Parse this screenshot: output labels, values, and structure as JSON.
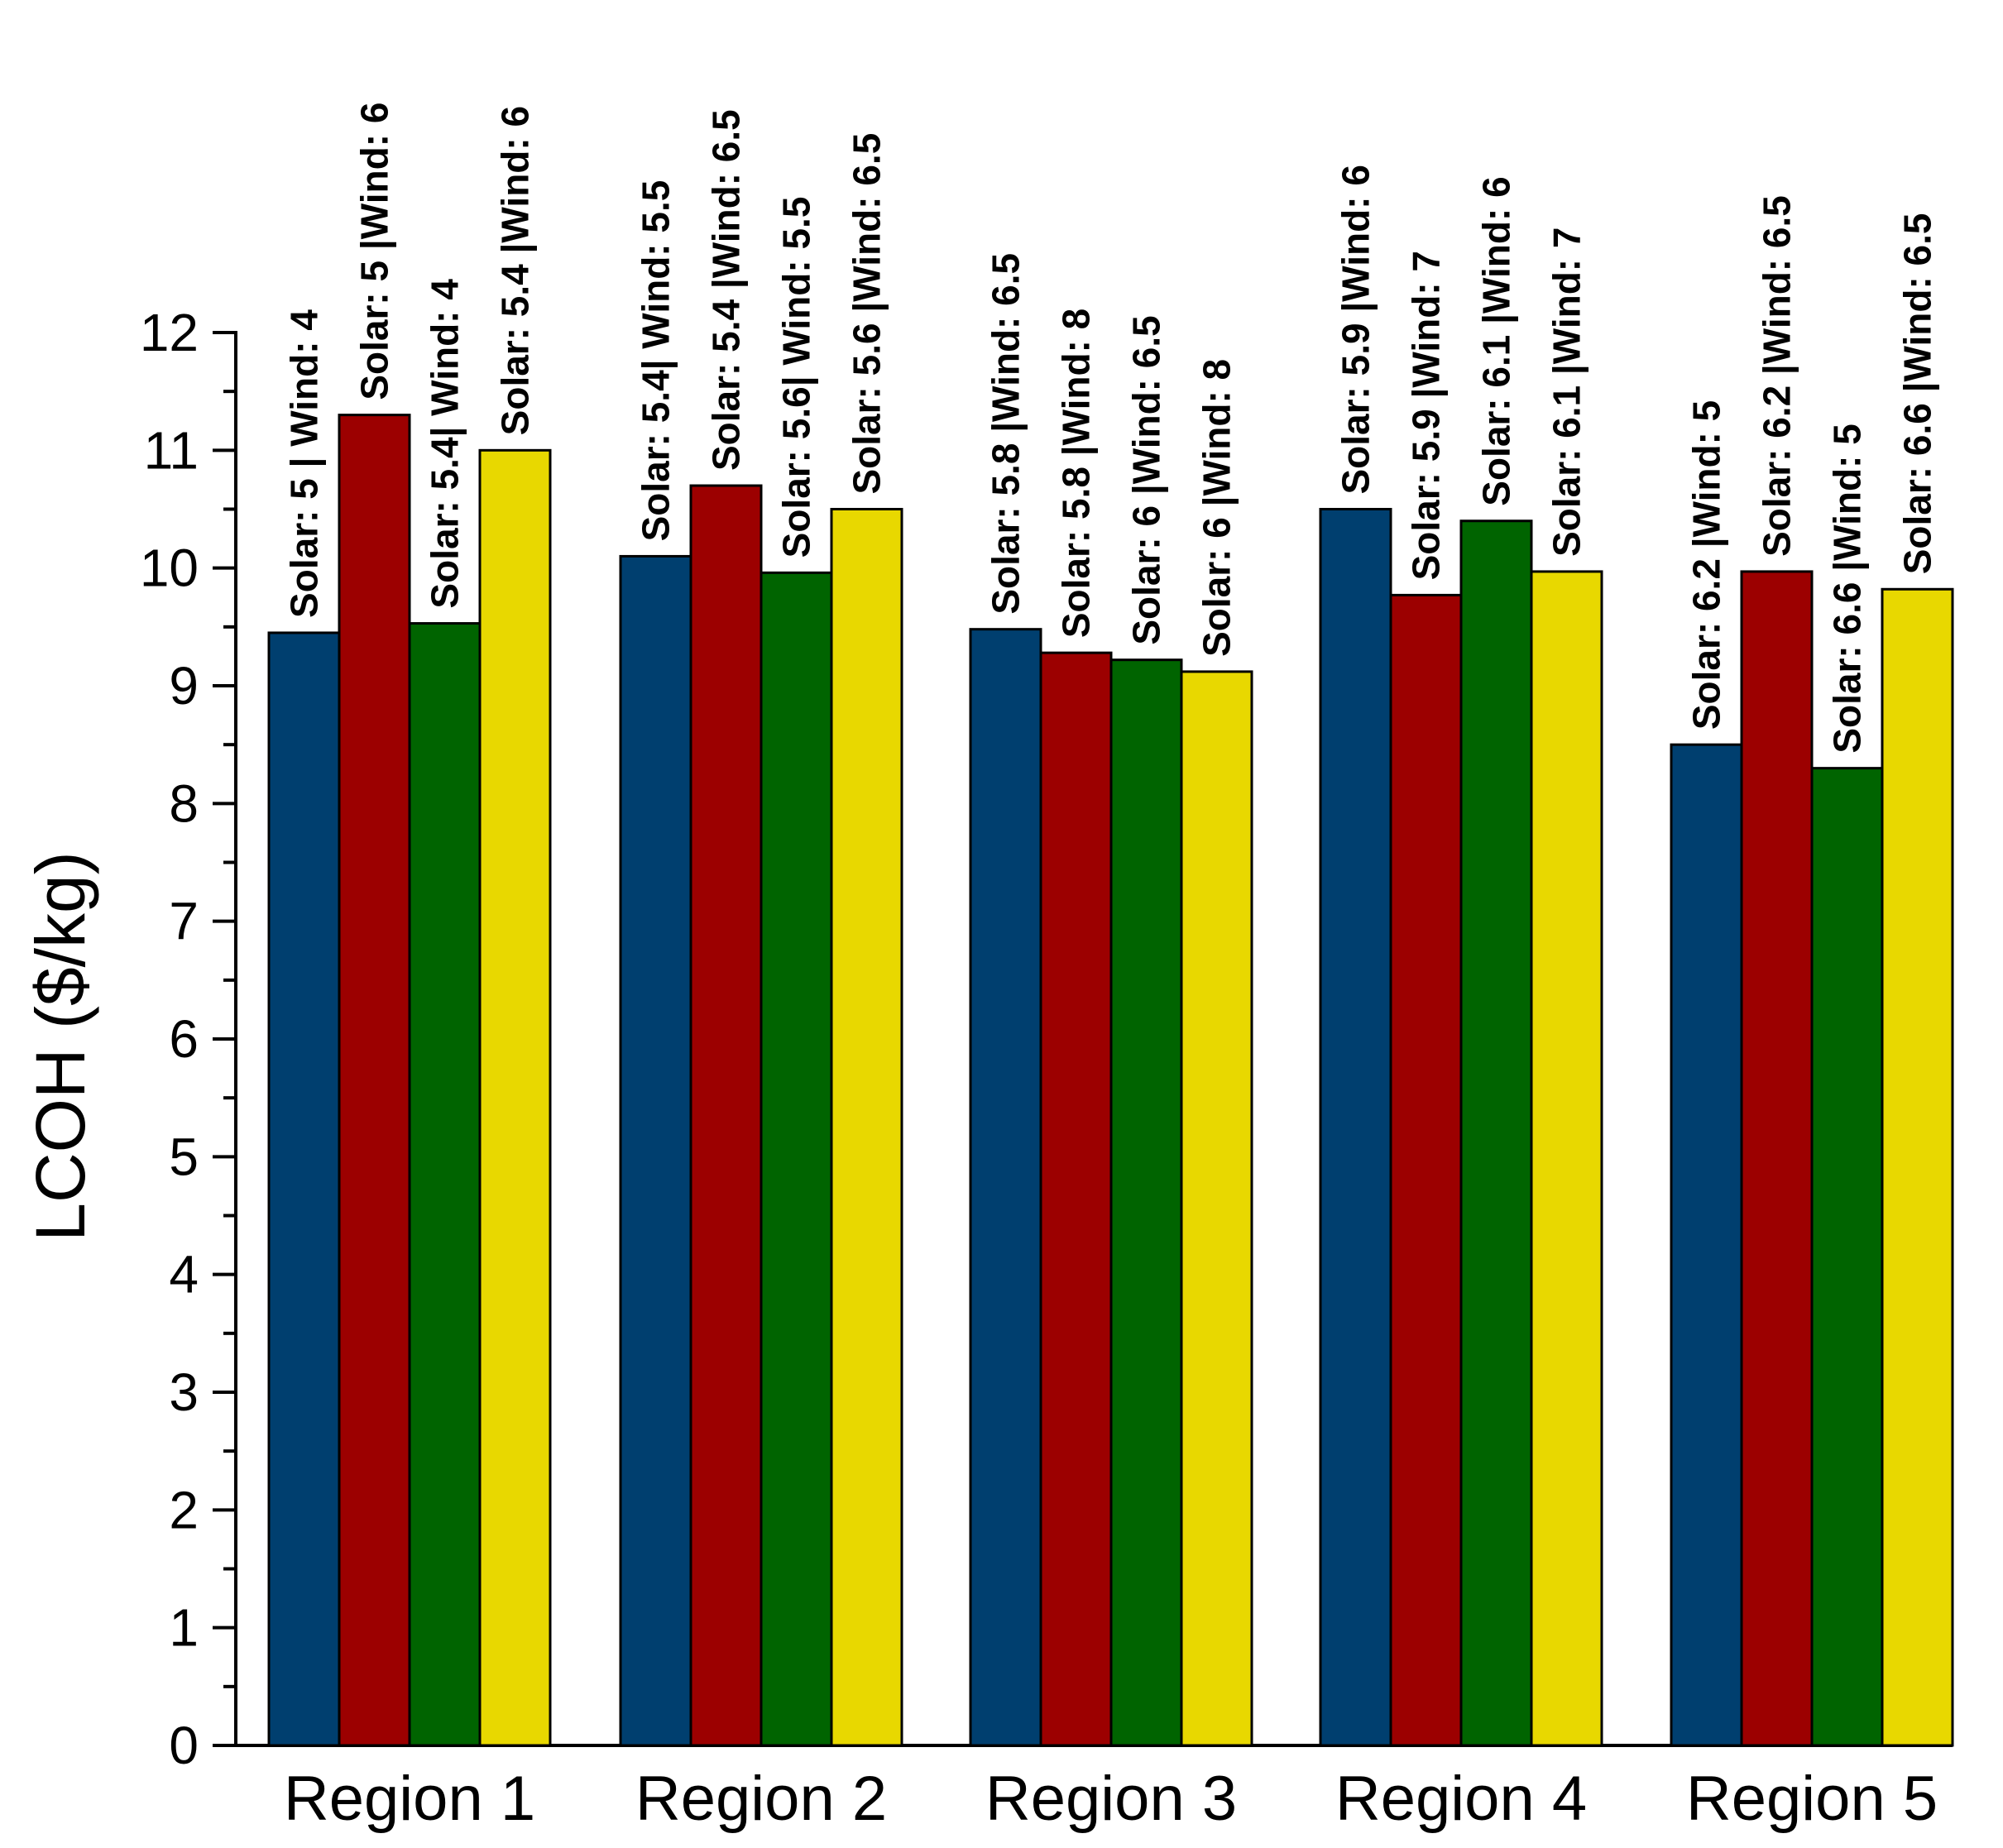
{
  "chart_data": {
    "type": "bar",
    "categories": [
      "Region 1",
      "Region 2",
      "Region 3",
      "Region 4",
      "Region 5"
    ],
    "ylabel": "LCOH ($/kg)",
    "xlabel": "",
    "ylim": [
      0,
      12
    ],
    "yticks": [
      0,
      1,
      2,
      3,
      4,
      5,
      6,
      7,
      8,
      9,
      10,
      11,
      12
    ],
    "grid": false,
    "series_colors": [
      "#003f6f",
      "#9c0000",
      "#006400",
      "#e8d800"
    ],
    "series": [
      {
        "values": [
          9.45,
          10.1,
          9.48,
          10.5,
          8.5
        ],
        "labels": [
          "Solar: 5 | Wind: 4",
          "Solar: 5.4| Wind: 5.5",
          "Solar: 5.8 |Wind: 6.5",
          "Solar: 5.9 |Wind: 6",
          "Solar: 6.2 |Wind: 5"
        ]
      },
      {
        "values": [
          11.3,
          10.7,
          9.28,
          9.77,
          9.97
        ],
        "labels": [
          "Solar: 5 |Wind: 6",
          "Solar: 5.4 |Wind: 6.5",
          "Solar: 5.8 |Wind: 8",
          "Solar: 5.9 |Wind: 7",
          "Solar: 6.2 |Wind: 6.5"
        ]
      },
      {
        "values": [
          9.53,
          9.96,
          9.22,
          10.4,
          8.3
        ],
        "labels": [
          "Solar: 5.4| Wind: 4",
          "Solar: 5.6| Wind: 5.5",
          "Solar: 6 |Wind: 6.5",
          "Solar: 6.1 |Wind: 6",
          "Solar: 6.6 |Wind: 5"
        ]
      },
      {
        "values": [
          11.0,
          10.5,
          9.12,
          9.97,
          9.82
        ],
        "labels": [
          "Solar: 5.4 |Wind: 6",
          "Solar: 5.6 |Wind: 6.5",
          "Solar: 6 |Wind: 8",
          "Solar: 6.1 |Wind: 7",
          "Solar: 6.6 |Wind: 6.5"
        ]
      }
    ]
  }
}
